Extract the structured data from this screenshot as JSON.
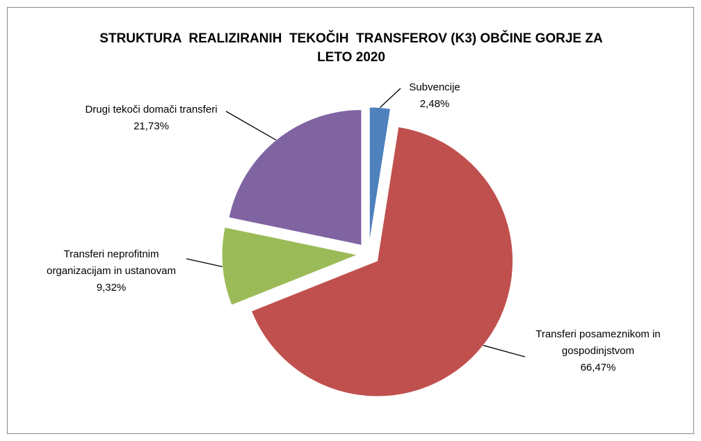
{
  "chart_data": {
    "type": "pie",
    "title": "STRUKTURA  REALIZIRANIH  TEKOČIH  TRANSFEROV (K3) OBČINE GORJE ZA LETO 2020",
    "categories": [
      "Subvencije",
      "Transferi posameznikom in gospodinjstvom",
      "Transferi neprofitnim organizacijam in ustanovam",
      "Drugi tekoči domači transferi"
    ],
    "values": [
      2.48,
      66.47,
      9.32,
      21.73
    ],
    "value_labels": [
      "2,48%",
      "66,47%",
      "9,32%",
      "21,73%"
    ],
    "colors": [
      "#4f81bd",
      "#c0504d",
      "#9bbb59",
      "#8064a2"
    ]
  }
}
